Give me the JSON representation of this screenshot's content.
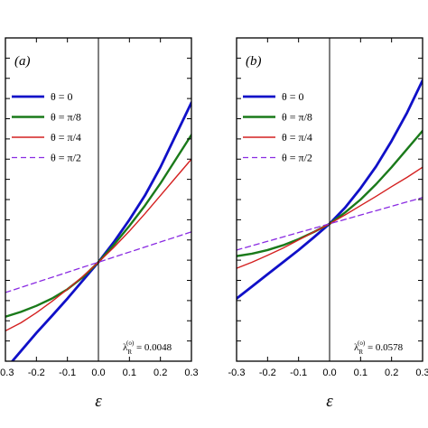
{
  "chart_data": [
    {
      "type": "line",
      "panel_label": "(a)",
      "xlabel": "ε",
      "xlim": [
        -0.3,
        0.3
      ],
      "xticks": [
        -0.3,
        -0.2,
        -0.1,
        0.0,
        0.1,
        0.2,
        0.3
      ],
      "xticklabels": [
        "-0.3",
        "-0.2",
        "-0.1",
        "0.0",
        "0.1",
        "0.2",
        "0.3"
      ],
      "ylim": [
        0,
        8
      ],
      "yticks": [
        0,
        0.5,
        1,
        1.5,
        2,
        2.5,
        3,
        3.5,
        4,
        4.5,
        5,
        5.5,
        6,
        6.5,
        7,
        7.5,
        8
      ],
      "legend_position": "upper-left",
      "annotation": {
        "lambda_base": "λ",
        "lambda_sub": "R",
        "lambda_sup": "(o)",
        "value_text": " = 0.0048"
      },
      "series": [
        {
          "name": "θ = 0",
          "color": "#1010c8",
          "width": 2.8,
          "dash": "",
          "x": [
            -0.3,
            -0.25,
            -0.2,
            -0.15,
            -0.1,
            -0.05,
            0.0,
            0.05,
            0.1,
            0.15,
            0.2,
            0.25,
            0.3
          ],
          "y": [
            -0.2,
            0.25,
            0.7,
            1.12,
            1.55,
            2.0,
            2.45,
            2.95,
            3.5,
            4.1,
            4.8,
            5.6,
            6.4
          ]
        },
        {
          "name": "θ = π/8",
          "color": "#1a7a1a",
          "width": 2.4,
          "dash": "",
          "x": [
            -0.3,
            -0.25,
            -0.2,
            -0.15,
            -0.1,
            -0.05,
            0.0,
            0.05,
            0.1,
            0.15,
            0.2,
            0.25,
            0.3
          ],
          "y": [
            1.1,
            1.22,
            1.37,
            1.55,
            1.78,
            2.08,
            2.45,
            2.88,
            3.35,
            3.85,
            4.4,
            5.0,
            5.6
          ]
        },
        {
          "name": "θ = π/4",
          "color": "#d42020",
          "width": 1.4,
          "dash": "",
          "x": [
            -0.3,
            -0.25,
            -0.2,
            -0.15,
            -0.1,
            -0.05,
            0.0,
            0.05,
            0.1,
            0.15,
            0.2,
            0.25,
            0.3
          ],
          "y": [
            0.75,
            0.95,
            1.2,
            1.48,
            1.78,
            2.1,
            2.45,
            2.82,
            3.22,
            3.65,
            4.1,
            4.55,
            5.0
          ]
        },
        {
          "name": "θ = π/2",
          "color": "#8a2be2",
          "width": 1.3,
          "dash": "6,4",
          "x": [
            -0.3,
            0.0,
            0.3
          ],
          "y": [
            1.7,
            2.45,
            3.2
          ]
        }
      ]
    },
    {
      "type": "line",
      "panel_label": "(b)",
      "xlabel": "ε",
      "xlim": [
        -0.3,
        0.3
      ],
      "xticks": [
        -0.3,
        -0.2,
        -0.1,
        0.0,
        0.1,
        0.2,
        0.3
      ],
      "xticklabels": [
        "-0.3",
        "-0.2",
        "-0.1",
        "0.0",
        "0.1",
        "0.2",
        "0.3"
      ],
      "ylim": [
        0,
        8
      ],
      "yticks": [
        0,
        0.5,
        1,
        1.5,
        2,
        2.5,
        3,
        3.5,
        4,
        4.5,
        5,
        5.5,
        6,
        6.5,
        7,
        7.5,
        8
      ],
      "legend_position": "upper-left",
      "annotation": {
        "lambda_base": "λ",
        "lambda_sub": "R",
        "lambda_sup": "(o)",
        "value_text": " = 0.0578"
      },
      "series": [
        {
          "name": "θ = 0",
          "color": "#1010c8",
          "width": 2.8,
          "dash": "",
          "x": [
            -0.3,
            -0.25,
            -0.2,
            -0.15,
            -0.1,
            -0.05,
            0.0,
            0.05,
            0.1,
            0.15,
            0.2,
            0.25,
            0.3
          ],
          "y": [
            1.55,
            1.85,
            2.15,
            2.45,
            2.75,
            3.07,
            3.4,
            3.8,
            4.28,
            4.82,
            5.45,
            6.15,
            6.95
          ]
        },
        {
          "name": "θ = π/8",
          "color": "#1a7a1a",
          "width": 2.4,
          "dash": "",
          "x": [
            -0.3,
            -0.25,
            -0.2,
            -0.15,
            -0.1,
            -0.05,
            0.0,
            0.05,
            0.1,
            0.15,
            0.2,
            0.25,
            0.3
          ],
          "y": [
            2.6,
            2.66,
            2.75,
            2.87,
            3.02,
            3.2,
            3.4,
            3.68,
            4.0,
            4.38,
            4.8,
            5.25,
            5.7
          ]
        },
        {
          "name": "θ = π/4",
          "color": "#d42020",
          "width": 1.4,
          "dash": "",
          "x": [
            -0.3,
            -0.25,
            -0.2,
            -0.15,
            -0.1,
            -0.05,
            0.0,
            0.05,
            0.1,
            0.15,
            0.2,
            0.25,
            0.3
          ],
          "y": [
            2.3,
            2.45,
            2.62,
            2.8,
            3.0,
            3.2,
            3.4,
            3.62,
            3.85,
            4.08,
            4.32,
            4.55,
            4.8
          ]
        },
        {
          "name": "θ = π/2",
          "color": "#8a2be2",
          "width": 1.3,
          "dash": "6,4",
          "x": [
            -0.3,
            0.0,
            0.3
          ],
          "y": [
            2.75,
            3.4,
            4.05
          ]
        }
      ]
    }
  ]
}
